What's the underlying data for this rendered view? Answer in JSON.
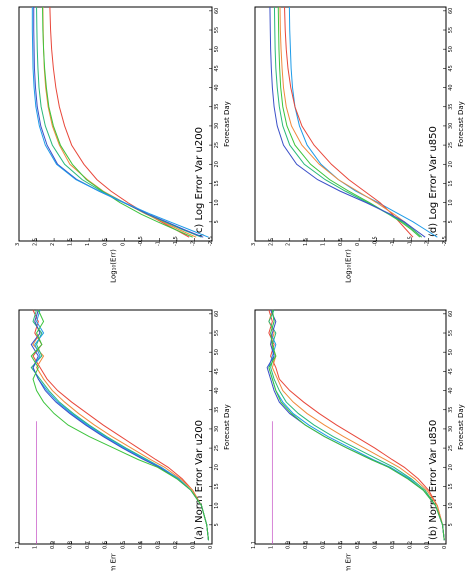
{
  "chart_data": [
    {
      "id": "a",
      "type": "line",
      "title": "(a) Norm Error Var u200",
      "xlabel": "Forecast Day",
      "ylabel": "Norm Err",
      "xlim": [
        0,
        61
      ],
      "ylim": [
        0,
        1.1
      ],
      "xticks": [
        5,
        10,
        15,
        20,
        25,
        30,
        35,
        40,
        45,
        50,
        55,
        60
      ],
      "yticks": [
        0,
        0.1,
        0.2,
        0.3,
        0.4,
        0.5,
        0.6,
        0.7,
        0.8,
        0.9,
        1,
        1.1
      ],
      "ytick_labels": [
        "0",
        "0.1",
        "0.2",
        "0.3",
        "0.4",
        "0.5",
        "0.6",
        "0.7",
        "0.8",
        "0.9",
        "1",
        "1.1"
      ],
      "reference_line": {
        "y": 1,
        "color": "#cc66cc"
      },
      "x": [
        1,
        5,
        10,
        14,
        17,
        20,
        22,
        25,
        28,
        31,
        34,
        37,
        40,
        43,
        46,
        49,
        52,
        55,
        58,
        61
      ],
      "series": [
        {
          "color": "#e8473a",
          "values": [
            0.02,
            0.03,
            0.06,
            0.11,
            0.17,
            0.25,
            0.32,
            0.42,
            0.52,
            0.62,
            0.71,
            0.8,
            0.88,
            0.94,
            0.98,
            1.02,
            0.97,
            1.01,
            0.99,
            1.02
          ]
        },
        {
          "color": "#f08a3c",
          "values": [
            0.02,
            0.03,
            0.06,
            0.11,
            0.18,
            0.27,
            0.35,
            0.46,
            0.57,
            0.67,
            0.76,
            0.84,
            0.91,
            0.96,
            1.0,
            0.96,
            1.02,
            0.98,
            1.01,
            0.99
          ]
        },
        {
          "color": "#2ab87a",
          "values": [
            0.02,
            0.03,
            0.06,
            0.12,
            0.19,
            0.29,
            0.37,
            0.49,
            0.6,
            0.7,
            0.79,
            0.87,
            0.93,
            0.98,
            1.03,
            0.97,
            1.0,
            0.97,
            1.02,
            1.0
          ]
        },
        {
          "color": "#1e9be8",
          "values": [
            0.02,
            0.03,
            0.06,
            0.12,
            0.19,
            0.29,
            0.38,
            0.5,
            0.61,
            0.71,
            0.8,
            0.88,
            0.94,
            0.99,
            1.02,
            0.98,
            1.01,
            0.96,
            1.0,
            0.98
          ]
        },
        {
          "color": "#3a4fc8",
          "values": [
            0.02,
            0.03,
            0.06,
            0.12,
            0.2,
            0.3,
            0.39,
            0.51,
            0.62,
            0.72,
            0.81,
            0.89,
            0.95,
            0.99,
            1.02,
            0.99,
            1.03,
            0.98,
            1.01,
            0.99
          ]
        },
        {
          "color": "#3cc43c",
          "values": [
            0.02,
            0.03,
            0.06,
            0.12,
            0.2,
            0.31,
            0.42,
            0.56,
            0.7,
            0.82,
            0.9,
            0.96,
            1.0,
            1.02,
            0.99,
            1.03,
            0.97,
            1.0,
            0.96,
            0.99
          ]
        }
      ]
    },
    {
      "id": "b",
      "type": "line",
      "title": "(b) Norm Error Var u850",
      "xlabel": "Forecast Day",
      "ylabel": "Norm Err",
      "xlim": [
        0,
        61
      ],
      "ylim": [
        0,
        1.1
      ],
      "xticks": [
        5,
        10,
        15,
        20,
        25,
        30,
        35,
        40,
        45,
        50,
        55,
        60
      ],
      "yticks": [
        0,
        0.1,
        0.2,
        0.3,
        0.4,
        0.5,
        0.6,
        0.7,
        0.8,
        0.9,
        1,
        1.1
      ],
      "ytick_labels": [
        "0",
        "0.1",
        "0.2",
        "0.3",
        "0.4",
        "0.5",
        "0.6",
        "0.7",
        "0.8",
        "0.9",
        "1",
        "1.1"
      ],
      "reference_line": {
        "y": 1,
        "color": "#cc66cc"
      },
      "x": [
        1,
        5,
        10,
        14,
        17,
        20,
        22,
        25,
        28,
        31,
        34,
        37,
        40,
        43,
        46,
        49,
        52,
        55,
        58,
        61
      ],
      "series": [
        {
          "color": "#e8473a",
          "values": [
            0.01,
            0.02,
            0.05,
            0.1,
            0.16,
            0.24,
            0.31,
            0.41,
            0.52,
            0.63,
            0.73,
            0.82,
            0.9,
            0.96,
            0.98,
            1.01,
            0.99,
            1.02,
            1.0,
            1.02
          ]
        },
        {
          "color": "#f08a3c",
          "values": [
            0.01,
            0.02,
            0.05,
            0.11,
            0.18,
            0.27,
            0.35,
            0.47,
            0.59,
            0.7,
            0.8,
            0.88,
            0.94,
            0.97,
            1.0,
            0.98,
            1.01,
            0.99,
            1.02,
            1.0
          ]
        },
        {
          "color": "#2ab87a",
          "values": [
            0.01,
            0.02,
            0.06,
            0.12,
            0.2,
            0.3,
            0.39,
            0.52,
            0.65,
            0.76,
            0.85,
            0.92,
            0.96,
            0.99,
            1.01,
            0.99,
            1.0,
            0.98,
            1.02,
            0.99
          ]
        },
        {
          "color": "#1e9be8",
          "values": [
            0.01,
            0.02,
            0.06,
            0.13,
            0.21,
            0.32,
            0.42,
            0.55,
            0.68,
            0.79,
            0.88,
            0.94,
            0.98,
            1.0,
            1.02,
            1.0,
            0.98,
            1.01,
            0.99,
            1.0
          ]
        },
        {
          "color": "#3a4fc8",
          "values": [
            0.01,
            0.02,
            0.06,
            0.13,
            0.22,
            0.33,
            0.43,
            0.57,
            0.7,
            0.81,
            0.9,
            0.96,
            0.99,
            1.01,
            1.03,
            0.99,
            1.01,
            1.0,
            0.98,
            1.01
          ]
        },
        {
          "color": "#3cc43c",
          "values": [
            0.01,
            0.02,
            0.06,
            0.13,
            0.22,
            0.33,
            0.43,
            0.57,
            0.7,
            0.81,
            0.89,
            0.95,
            0.98,
            1.0,
            1.02,
            0.98,
            1.0,
            1.01,
            0.99,
            1.0
          ]
        }
      ]
    },
    {
      "id": "c",
      "type": "line",
      "title": "(c) Log Error Var u200",
      "xlabel": "Forecast Day",
      "ylabel": "Log₁₀(Err)",
      "xlim": [
        0,
        61
      ],
      "ylim": [
        -2.5,
        3
      ],
      "xticks": [
        5,
        10,
        15,
        20,
        25,
        30,
        35,
        40,
        45,
        50,
        55,
        60
      ],
      "yticks": [
        -2.5,
        -2,
        -1.5,
        -1,
        -0.5,
        0,
        0.5,
        1,
        1.5,
        2,
        2.5,
        3
      ],
      "ytick_labels": [
        "-2.5",
        "-2",
        "-1.5",
        "-1",
        "-0.5",
        "0",
        "0.5",
        "1",
        "1.5",
        "2",
        "2.5",
        "3"
      ],
      "x": [
        1,
        3,
        5,
        7,
        10,
        13,
        16,
        20,
        25,
        30,
        35,
        40,
        45,
        50,
        55,
        61
      ],
      "series": [
        {
          "color": "#e8473a",
          "values": [
            -1.85,
            -1.45,
            -1.05,
            -0.65,
            -0.1,
            0.38,
            0.78,
            1.15,
            1.5,
            1.7,
            1.85,
            1.95,
            2.02,
            2.07,
            2.1,
            2.12
          ]
        },
        {
          "color": "#f08a3c",
          "values": [
            -2.05,
            -1.55,
            -1.1,
            -0.62,
            0.0,
            0.6,
            1.05,
            1.55,
            1.85,
            2.05,
            2.17,
            2.24,
            2.28,
            2.3,
            2.31,
            2.32
          ]
        },
        {
          "color": "#3cc43c",
          "values": [
            -1.95,
            -1.45,
            -0.95,
            -0.48,
            0.12,
            0.62,
            1.08,
            1.48,
            1.82,
            2.02,
            2.15,
            2.22,
            2.27,
            2.3,
            2.32,
            2.33
          ]
        },
        {
          "color": "#2ab87a",
          "values": [
            -2.2,
            -1.65,
            -1.15,
            -0.65,
            0.0,
            0.65,
            1.2,
            1.7,
            2.05,
            2.25,
            2.37,
            2.43,
            2.46,
            2.48,
            2.49,
            2.5
          ]
        },
        {
          "color": "#3a4fc8",
          "values": [
            -2.25,
            -1.7,
            -1.2,
            -0.68,
            0.02,
            0.72,
            1.35,
            1.9,
            2.2,
            2.38,
            2.48,
            2.53,
            2.56,
            2.57,
            2.58,
            2.58
          ]
        },
        {
          "color": "#1e9be8",
          "values": [
            -2.4,
            -1.85,
            -1.3,
            -0.75,
            0.0,
            0.72,
            1.38,
            1.93,
            2.25,
            2.42,
            2.52,
            2.57,
            2.6,
            2.61,
            2.62,
            2.62
          ]
        }
      ]
    },
    {
      "id": "d",
      "type": "line",
      "title": "(d) Log Error Var u850",
      "xlabel": "Forecast Day",
      "ylabel": "Log₁₀(Err)",
      "xlim": [
        0,
        61
      ],
      "ylim": [
        -2.5,
        3
      ],
      "xticks": [
        5,
        10,
        15,
        20,
        25,
        30,
        35,
        40,
        45,
        50,
        55,
        60
      ],
      "yticks": [
        -2.5,
        -2,
        -1.5,
        -1,
        -0.5,
        0,
        0.5,
        1,
        1.5,
        2,
        2.5,
        3
      ],
      "ytick_labels": [
        "-2.5",
        "-2",
        "-1.5",
        "-1",
        "-0.5",
        "0",
        "0.5",
        "1",
        "1.5",
        "2",
        "2.5",
        "3"
      ],
      "x": [
        1,
        3,
        5,
        7,
        10,
        13,
        16,
        20,
        25,
        30,
        35,
        40,
        45,
        50,
        55,
        61
      ],
      "series": [
        {
          "color": "#1e9be8",
          "values": [
            -2.25,
            -1.9,
            -1.55,
            -1.15,
            -0.55,
            0.1,
            0.6,
            1.1,
            1.5,
            1.72,
            1.85,
            1.92,
            1.96,
            1.98,
            2.0,
            2.01
          ]
        },
        {
          "color": "#e8473a",
          "values": [
            -1.55,
            -1.35,
            -1.15,
            -0.95,
            -0.6,
            -0.15,
            0.3,
            0.8,
            1.3,
            1.65,
            1.85,
            1.97,
            2.05,
            2.1,
            2.13,
            2.15
          ]
        },
        {
          "color": "#f08a3c",
          "values": [
            -1.8,
            -1.55,
            -1.3,
            -1.0,
            -0.5,
            0.05,
            0.6,
            1.15,
            1.65,
            1.95,
            2.1,
            2.18,
            2.22,
            2.25,
            2.27,
            2.28
          ]
        },
        {
          "color": "#3cc43c",
          "values": [
            -1.75,
            -1.5,
            -1.2,
            -0.85,
            -0.3,
            0.3,
            0.85,
            1.4,
            1.85,
            2.08,
            2.2,
            2.26,
            2.29,
            2.31,
            2.32,
            2.33
          ]
        },
        {
          "color": "#2ab87a",
          "values": [
            -1.8,
            -1.55,
            -1.25,
            -0.85,
            -0.25,
            0.4,
            0.98,
            1.58,
            2.0,
            2.2,
            2.3,
            2.36,
            2.4,
            2.42,
            2.43,
            2.44
          ]
        },
        {
          "color": "#3a4fc8",
          "values": [
            -1.9,
            -1.6,
            -1.3,
            -0.9,
            -0.2,
            0.55,
            1.2,
            1.8,
            2.18,
            2.36,
            2.45,
            2.5,
            2.53,
            2.55,
            2.56,
            2.57
          ]
        }
      ]
    }
  ]
}
